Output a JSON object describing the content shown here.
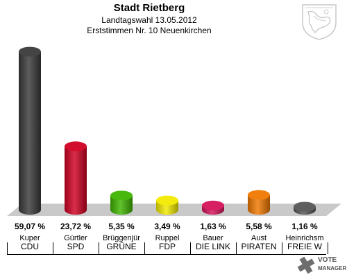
{
  "header": {
    "title": "Stadt Rietberg",
    "subtitle": "Landtagswahl 13.05.2012",
    "subtitle2": "Erststimmen Nr. 10 Neuenkirchen"
  },
  "logo": {
    "line1": "VOTE",
    "line2": "MANAGER"
  },
  "chart_data": {
    "type": "bar",
    "title": "Stadt Rietberg",
    "subtitle": "Landtagswahl 13.05.2012",
    "xlabel": "",
    "ylabel": "",
    "grid": false,
    "legend": "none",
    "unit": "%",
    "ylim": [
      0,
      60
    ],
    "categories": [
      "CDU",
      "SPD",
      "GRÜNE",
      "FDP",
      "DIE LINKE",
      "PIRATEN",
      "FREIE W"
    ],
    "candidates": [
      "Kuper",
      "Gürtler",
      "Brüggenjür",
      "Ruppel",
      "Bauer",
      "Aust",
      "Heinrichsm"
    ],
    "party_labels": [
      "CDU",
      "SPD",
      "GRÜNE",
      "FDP",
      "DIE LINK",
      "PIRATEN",
      "FREIE W"
    ],
    "values": [
      59.07,
      23.72,
      5.35,
      3.49,
      1.63,
      5.58,
      1.16
    ],
    "value_labels": [
      "59,07 %",
      "23,72 %",
      "5,35 %",
      "3,49 %",
      "1,63 %",
      "5,58 %",
      "1,16 %"
    ],
    "colors": [
      "#3a3a3a",
      "#d00022",
      "#3fb400",
      "#f2ea00",
      "#d4145a",
      "#f07800",
      "#555555"
    ]
  }
}
